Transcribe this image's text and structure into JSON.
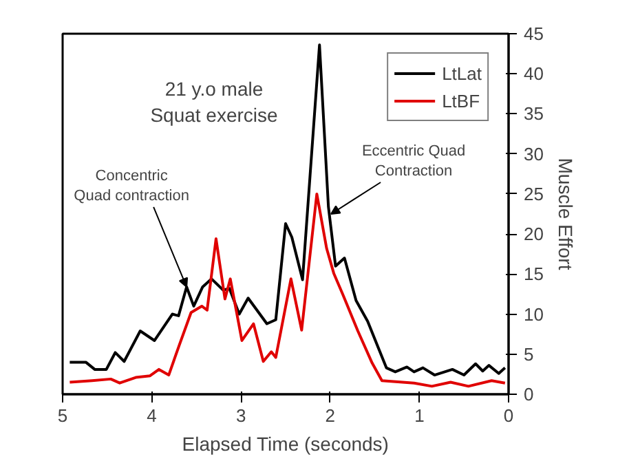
{
  "chart_data": {
    "type": "line",
    "xlabel": "Elapsed Time (seconds)",
    "ylabel": "Muscle Effort",
    "xlim": [
      5,
      0
    ],
    "xticks": [
      5,
      4,
      3,
      2,
      1,
      0
    ],
    "ylim": [
      0,
      45
    ],
    "yticks": [
      0,
      5,
      10,
      15,
      20,
      25,
      30,
      35,
      40,
      45
    ],
    "grid": false,
    "legend": "top right",
    "line_style": "solid",
    "annotations": [
      "21 y.o male\nSquat exercise",
      {
        "text": "Concentric\nQuad contraction",
        "x": 3.61,
        "y": 13.4
      },
      {
        "text": "Eccentric Quad\nContraction",
        "x": 1.99,
        "y": 22.5
      }
    ],
    "series": [
      {
        "name": "LtLat",
        "color": "#000000",
        "x": [
          4.92,
          4.74,
          4.64,
          4.51,
          4.41,
          4.31,
          4.13,
          3.97,
          3.77,
          3.7,
          3.61,
          3.53,
          3.43,
          3.33,
          3.2,
          3.13,
          3.02,
          2.92,
          2.71,
          2.61,
          2.5,
          2.43,
          2.31,
          2.12,
          2.02,
          1.94,
          1.84,
          1.71,
          1.58,
          1.37,
          1.27,
          1.14,
          1.06,
          0.96,
          0.83,
          0.63,
          0.5,
          0.37,
          0.29,
          0.22,
          0.11,
          0.04
        ],
        "values": [
          4.0,
          4.0,
          3.1,
          3.1,
          5.2,
          4.1,
          7.9,
          6.7,
          10,
          9.8,
          13.4,
          11,
          13.4,
          14.4,
          13,
          13.2,
          10,
          12,
          8.8,
          9.3,
          21.3,
          19.6,
          14.3,
          43.6,
          23.4,
          16,
          17,
          11.7,
          9.1,
          3.3,
          2.8,
          3.4,
          2.8,
          3.3,
          2.4,
          3.1,
          2.4,
          3.8,
          2.9,
          3.6,
          2.6,
          3.3
        ]
      },
      {
        "name": "LtBF",
        "color": "#e00000",
        "x": [
          4.92,
          4.67,
          4.46,
          4.36,
          4.18,
          4.02,
          3.92,
          3.81,
          3.69,
          3.56,
          3.44,
          3.38,
          3.28,
          3.18,
          3.12,
          2.99,
          2.86,
          2.75,
          2.66,
          2.61,
          2.44,
          2.32,
          2.15,
          2.04,
          1.96,
          1.86,
          1.69,
          1.53,
          1.42,
          1.06,
          0.86,
          0.65,
          0.45,
          0.19,
          0.04
        ],
        "values": [
          1.5,
          1.7,
          1.9,
          1.4,
          2.1,
          2.3,
          3.1,
          2.4,
          6.2,
          10.2,
          11,
          10.5,
          19.4,
          11.9,
          14.4,
          6.7,
          8.8,
          4.1,
          5.3,
          4.6,
          14.4,
          8,
          25,
          18.2,
          15.1,
          12.5,
          7.9,
          3.9,
          1.7,
          1.4,
          1.0,
          1.5,
          1.0,
          1.7,
          1.4
        ]
      }
    ]
  }
}
